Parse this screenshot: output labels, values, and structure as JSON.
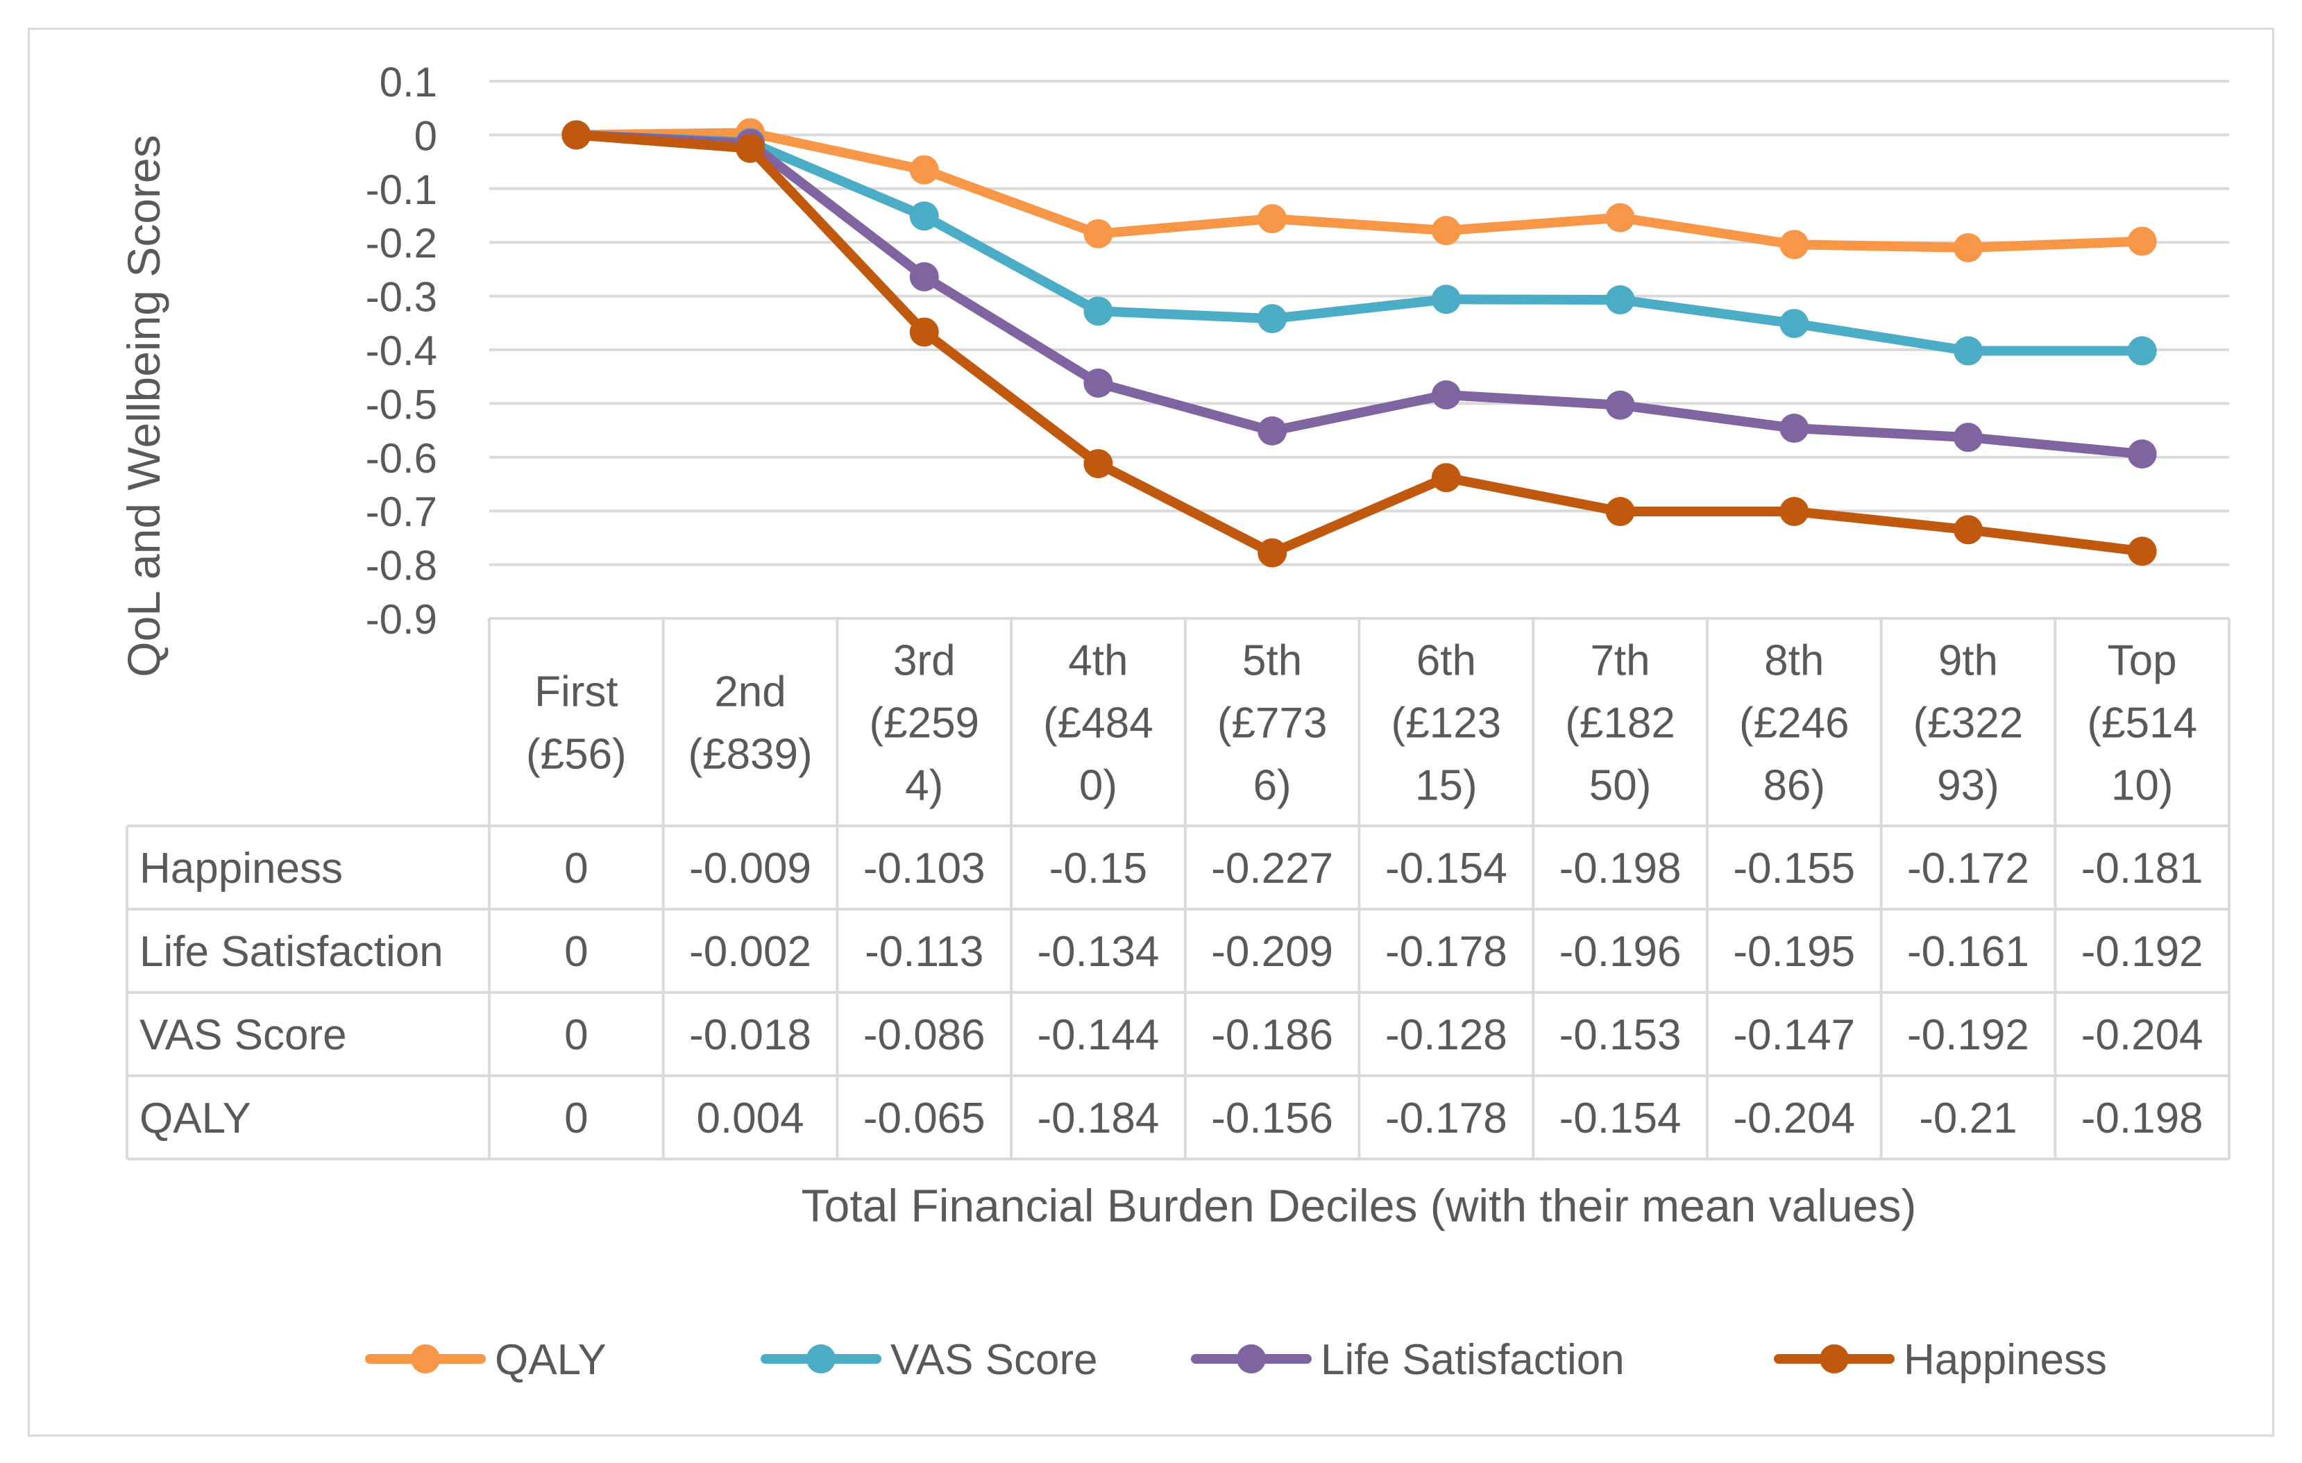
{
  "chart_data": {
    "type": "line",
    "ylabel": "QoL and Wellbeing Scores",
    "xlabel": "Total Financial Burden Deciles (with their mean values)",
    "ylim": [
      -0.9,
      0.1
    ],
    "yticks": [
      "0.1",
      "0",
      "-0.1",
      "-0.2",
      "-0.3",
      "-0.4",
      "-0.5",
      "-0.6",
      "-0.7",
      "-0.8",
      "-0.9"
    ],
    "grid": true,
    "legend_position": "bottom",
    "categories": [
      [
        "First",
        "(£56)"
      ],
      [
        "2nd",
        "(£839)"
      ],
      [
        "3rd",
        "(£259",
        "4)"
      ],
      [
        "4th",
        "(£484",
        "0)"
      ],
      [
        "5th",
        "(£773",
        "6)"
      ],
      [
        "6th",
        "(£123",
        "15)"
      ],
      [
        "7th",
        "(£182",
        "50)"
      ],
      [
        "8th",
        "(£246",
        "86)"
      ],
      [
        "9th",
        "(£322",
        "93)"
      ],
      [
        "Top",
        "(£514",
        "10)"
      ]
    ],
    "series": [
      {
        "name": "QALY",
        "color": "#f79646",
        "values": [
          0,
          0.004,
          -0.065,
          -0.184,
          -0.156,
          -0.178,
          -0.154,
          -0.204,
          -0.21,
          -0.198
        ]
      },
      {
        "name": "VAS Score",
        "color": "#4bacc6",
        "values": [
          0,
          -0.018,
          -0.086,
          -0.144,
          -0.186,
          -0.128,
          -0.153,
          -0.147,
          -0.192,
          -0.204
        ]
      },
      {
        "name": "Life Satisfaction",
        "color": "#8064a2",
        "values": [
          0,
          -0.002,
          -0.113,
          -0.134,
          -0.209,
          -0.178,
          -0.196,
          -0.195,
          -0.161,
          -0.192
        ]
      },
      {
        "name": "Happiness",
        "color": "#c0590e",
        "values": [
          0,
          -0.009,
          -0.103,
          -0.15,
          -0.227,
          -0.154,
          -0.198,
          -0.155,
          -0.172,
          -0.181
        ]
      }
    ],
    "stacked": true,
    "table": {
      "rows": [
        {
          "label": "Happiness",
          "cells": [
            "0",
            "-0.009",
            "-0.103",
            "-0.15",
            "-0.227",
            "-0.154",
            "-0.198",
            "-0.155",
            "-0.172",
            "-0.181"
          ]
        },
        {
          "label": "Life Satisfaction",
          "cells": [
            "0",
            "-0.002",
            "-0.113",
            "-0.134",
            "-0.209",
            "-0.178",
            "-0.196",
            "-0.195",
            "-0.161",
            "-0.192"
          ]
        },
        {
          "label": "VAS Score",
          "cells": [
            "0",
            "-0.018",
            "-0.086",
            "-0.144",
            "-0.186",
            "-0.128",
            "-0.153",
            "-0.147",
            "-0.192",
            "-0.204"
          ]
        },
        {
          "label": "QALY",
          "cells": [
            "0",
            "0.004",
            "-0.065",
            "-0.184",
            "-0.156",
            "-0.178",
            "-0.154",
            "-0.204",
            "-0.21",
            "-0.198"
          ]
        }
      ]
    },
    "legend": [
      {
        "name": "QALY",
        "color": "#f79646"
      },
      {
        "name": "VAS Score",
        "color": "#4bacc6"
      },
      {
        "name": "Life Satisfaction",
        "color": "#8064a2"
      },
      {
        "name": "Happiness",
        "color": "#c0590e"
      }
    ]
  }
}
